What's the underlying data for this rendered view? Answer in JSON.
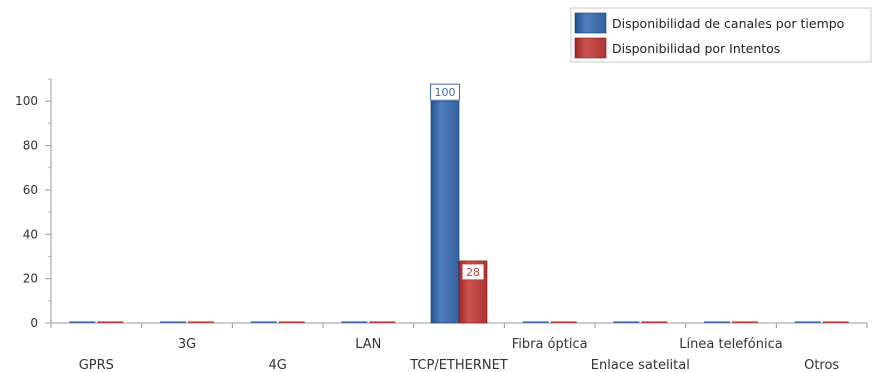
{
  "chart_data": {
    "type": "bar",
    "categories": [
      "GPRS",
      "3G",
      "4G",
      "LAN",
      "TCP/ETHERNET",
      "Fibra óptica",
      "Enlace satelital",
      "Línea telefónica",
      "Otros"
    ],
    "series": [
      {
        "name": "Disponibilidad de canales por tiempo",
        "values": [
          0,
          0,
          0,
          0,
          100,
          0,
          0,
          0,
          0
        ],
        "color": "#3d6aa8"
      },
      {
        "name": "Disponibilidad por Intentos",
        "values": [
          0,
          0,
          0,
          0,
          28,
          0,
          0,
          0,
          0
        ],
        "color": "#b8403c"
      }
    ],
    "data_labels": [
      {
        "series": 0,
        "category": "TCP/ETHERNET",
        "text": "100"
      },
      {
        "series": 1,
        "category": "TCP/ETHERNET",
        "text": "28"
      }
    ],
    "yticks": [
      0,
      20,
      40,
      60,
      80,
      100
    ],
    "ylim": [
      0,
      110
    ],
    "grid": false,
    "legend_position": "top-right",
    "category_label_rows": "staggered"
  }
}
